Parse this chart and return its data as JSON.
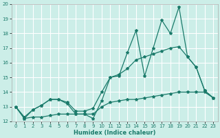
{
  "xlabel": "Humidex (Indice chaleur)",
  "bg_color": "#cceee8",
  "grid_color": "#ffffff",
  "line_color": "#1a7a6a",
  "xlim": [
    -0.5,
    23.5
  ],
  "ylim": [
    12,
    20
  ],
  "xticks": [
    0,
    1,
    2,
    3,
    4,
    5,
    6,
    7,
    8,
    9,
    10,
    11,
    12,
    13,
    14,
    15,
    16,
    17,
    18,
    19,
    20,
    21,
    22,
    23
  ],
  "yticks": [
    12,
    13,
    14,
    15,
    16,
    17,
    18,
    19,
    20
  ],
  "line1_x": [
    0,
    1,
    2,
    3,
    4,
    5,
    6,
    7,
    8,
    9,
    10,
    11,
    12,
    13,
    14,
    15,
    16,
    17,
    18,
    19,
    20,
    21,
    22,
    23
  ],
  "line1_y": [
    13.0,
    12.2,
    12.8,
    13.1,
    13.5,
    13.5,
    13.2,
    12.5,
    12.5,
    12.2,
    13.4,
    15.0,
    15.1,
    16.7,
    18.2,
    15.1,
    17.0,
    18.9,
    18.0,
    19.8,
    16.4,
    15.7,
    14.1,
    13.6
  ],
  "line2_x": [
    0,
    1,
    2,
    3,
    4,
    5,
    6,
    7,
    8,
    9,
    10,
    11,
    12,
    13,
    14,
    15,
    16,
    17,
    18,
    19,
    20,
    21,
    22,
    23
  ],
  "line2_y": [
    13.0,
    12.3,
    12.8,
    13.1,
    13.5,
    13.5,
    13.3,
    12.7,
    12.7,
    12.9,
    14.0,
    15.0,
    15.2,
    15.6,
    16.2,
    16.4,
    16.6,
    16.8,
    17.0,
    17.1,
    16.4,
    15.7,
    14.1,
    13.6
  ],
  "line3_x": [
    0,
    1,
    2,
    3,
    4,
    5,
    6,
    7,
    8,
    9,
    10,
    11,
    12,
    13,
    14,
    15,
    16,
    17,
    18,
    19,
    20,
    21,
    22,
    23
  ],
  "line3_y": [
    13.0,
    12.2,
    12.3,
    12.3,
    12.4,
    12.5,
    12.5,
    12.5,
    12.5,
    12.5,
    13.0,
    13.3,
    13.4,
    13.5,
    13.5,
    13.6,
    13.7,
    13.8,
    13.9,
    14.0,
    14.0,
    14.0,
    14.0,
    13.6
  ]
}
